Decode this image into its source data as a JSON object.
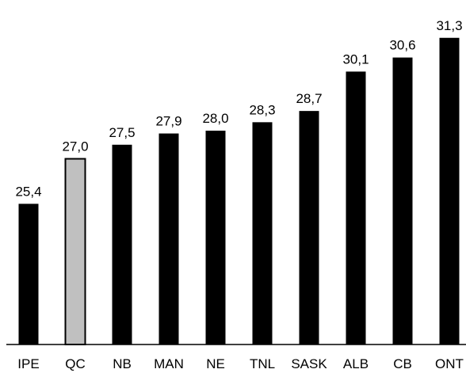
{
  "chart_data": {
    "type": "bar",
    "title": "",
    "xlabel": "",
    "ylabel": "",
    "categories": [
      "IPE",
      "QC",
      "NB",
      "MAN",
      "NE",
      "TNL",
      "SASK",
      "ALB",
      "CB",
      "ONT"
    ],
    "values": [
      25.4,
      27.0,
      27.5,
      27.9,
      28.0,
      28.3,
      28.7,
      30.1,
      30.6,
      31.3
    ],
    "value_labels": [
      "25,4",
      "27,0",
      "27,5",
      "27,9",
      "28,0",
      "28,3",
      "28,7",
      "30,1",
      "30,6",
      "31,3"
    ],
    "highlight_category": "QC",
    "colors": {
      "bar": "#000000",
      "highlight": "#c0c0c0",
      "outline": "#000000",
      "axis": "#000000"
    },
    "ylim": [
      20.4,
      31.8
    ],
    "grid": false,
    "legend": "none"
  }
}
